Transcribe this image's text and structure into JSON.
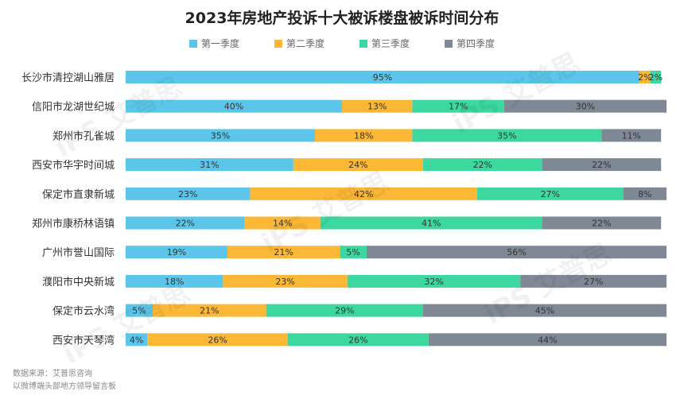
{
  "chart_data": {
    "type": "bar",
    "orientation": "horizontal",
    "stacked": true,
    "title": "2023年房地产投诉十大被诉楼盘被诉时间分布",
    "xlabel": "",
    "ylabel": "",
    "xlim": [
      0,
      100
    ],
    "unit": "%",
    "categories": [
      "长沙市清控湖山雅居",
      "信阳市龙湖世纪城",
      "郑州市孔雀城",
      "西安市华宇时间城",
      "保定市直隶新城",
      "郑州市康桥林语镇",
      "广州市誉山国际",
      "濮阳市中央新城",
      "保定市云水湾",
      "西安市天琴湾"
    ],
    "series": [
      {
        "name": "第一季度",
        "color": "#5bc6ea",
        "values": [
          95,
          40,
          35,
          31,
          23,
          22,
          19,
          18,
          5,
          4
        ]
      },
      {
        "name": "第二季度",
        "color": "#fbb836",
        "values": [
          2,
          13,
          18,
          24,
          42,
          14,
          21,
          23,
          21,
          26
        ]
      },
      {
        "name": "第三季度",
        "color": "#3dd7a0",
        "values": [
          2,
          17,
          35,
          22,
          27,
          41,
          5,
          32,
          29,
          26
        ]
      },
      {
        "name": "第四季度",
        "color": "#7f8895",
        "values": [
          0,
          30,
          11,
          22,
          8,
          22,
          56,
          27,
          45,
          44
        ]
      }
    ],
    "legend_position": "top"
  },
  "footer": {
    "source": "数据来源：艾普思咨询",
    "note": "以微博端头部地方领导留言板"
  },
  "watermark": {
    "text": "iPS 艾普思",
    "count": 5
  }
}
